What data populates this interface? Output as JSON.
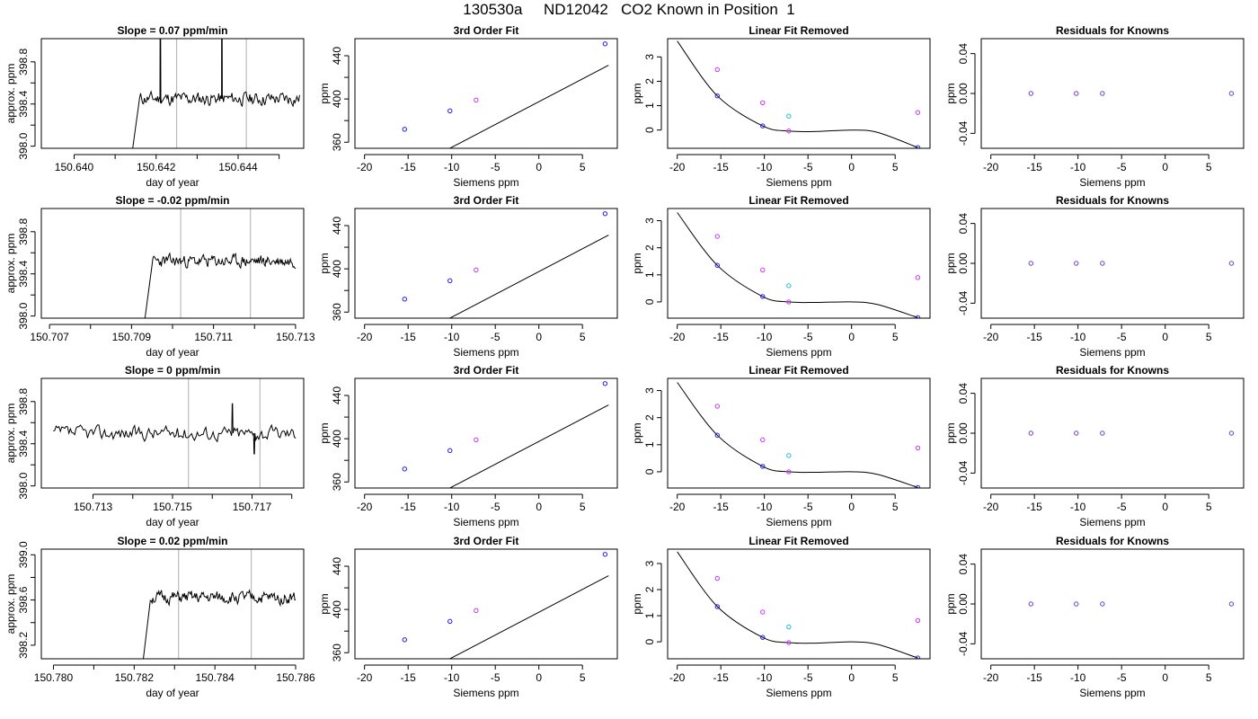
{
  "title": "130530a     ND12042   CO2 Known in Position  1",
  "colors": {
    "trace": "#000000",
    "vline": "#bbbbbb",
    "magenta": "#cc33ff",
    "cyan": "#22bbdd",
    "blue": "#1a1aee",
    "purple": "#6a3dcc"
  },
  "chart_data": [
    {
      "id": "r1-trace",
      "type": "line",
      "title": "Slope =  0.07  ppm/min",
      "xlabel": "day of year",
      "ylabel": "approx. ppm",
      "xlim": [
        150.6392,
        150.6456
      ],
      "ylim": [
        397.98,
        399.02
      ],
      "xticks": [
        150.64,
        150.641,
        150.642,
        150.643,
        150.644,
        150.645
      ],
      "xtick_labels": [
        "150.640",
        "",
        "150.642",
        "",
        "150.644",
        ""
      ],
      "yticks": [
        398.0,
        398.2,
        398.4,
        398.6,
        398.8
      ],
      "ytick_labels": [
        "398.0",
        "",
        "398.4",
        "",
        "398.8"
      ],
      "vlines": [
        150.6425,
        150.6442
      ],
      "x_start": 150.6414,
      "x_end": 150.6455,
      "baseline": 398.45,
      "noise": 0.07,
      "seed": 11,
      "spikes": [
        [
          150.6421,
          399.5
        ],
        [
          150.6436,
          399.5
        ]
      ],
      "rise": {
        "from": 397.9,
        "x0": 150.6414,
        "x1": 150.6416
      }
    },
    {
      "id": "r1-fit",
      "type": "line",
      "title": "3rd Order Fit",
      "xlabel": "Siemens ppm",
      "ylabel": "ppm",
      "xlim": [
        -21.1,
        9.0
      ],
      "ylim": [
        354.4,
        455.8
      ],
      "xticks": [
        -20,
        -15,
        -10,
        -5,
        0,
        5
      ],
      "yticks": [
        360,
        380,
        400,
        420,
        440
      ],
      "ytick_labels": [
        "360",
        "",
        "400",
        "",
        "440"
      ],
      "line": {
        "slope": 4.22,
        "intercept": 397.5,
        "x0": -20,
        "x1": 8
      },
      "points": [
        {
          "x": -15.4,
          "y": 372,
          "color": "blue"
        },
        {
          "x": -10.2,
          "y": 389,
          "color": "blue"
        },
        {
          "x": -7.2,
          "y": 399,
          "color": "magenta"
        },
        {
          "x": 7.6,
          "y": 451,
          "color": "blue"
        }
      ]
    },
    {
      "id": "r1-resid",
      "type": "scatter",
      "title": "Linear Fit Removed",
      "xlabel": "Siemens ppm",
      "ylabel": "ppm",
      "xlim": [
        -21.1,
        9.0
      ],
      "ylim": [
        -0.75,
        3.75
      ],
      "xticks": [
        -20,
        -15,
        -10,
        -5,
        0,
        5
      ],
      "yticks": [
        0,
        1,
        2,
        3
      ],
      "curve": [
        [
          -20,
          3.65
        ],
        [
          -15.4,
          1.4
        ],
        [
          -10.2,
          0.17
        ],
        [
          -7.2,
          -0.04
        ],
        [
          -4,
          -0.06
        ],
        [
          0,
          0.0
        ],
        [
          3,
          -0.1
        ],
        [
          7.6,
          -0.72
        ]
      ],
      "points": [
        {
          "x": -15.4,
          "y": 2.48,
          "color": "magenta"
        },
        {
          "x": -15.4,
          "y": 1.4,
          "color": "blue"
        },
        {
          "x": -10.2,
          "y": 1.12,
          "color": "magenta"
        },
        {
          "x": -10.2,
          "y": 0.17,
          "color": "blue"
        },
        {
          "x": -7.2,
          "y": 0.57,
          "color": "cyan"
        },
        {
          "x": -7.2,
          "y": -0.04,
          "color": "magenta"
        },
        {
          "x": 7.6,
          "y": 0.72,
          "color": "magenta"
        },
        {
          "x": 7.6,
          "y": -0.72,
          "color": "blue"
        }
      ]
    },
    {
      "id": "r1-known",
      "type": "scatter",
      "title": "Residuals for Knowns",
      "xlabel": "Siemens ppm",
      "ylabel": "ppm",
      "xlim": [
        -21.1,
        9.0
      ],
      "ylim": [
        -0.055,
        0.055
      ],
      "xticks": [
        -20,
        -15,
        -10,
        -5,
        0,
        5
      ],
      "yticks": [
        -0.04,
        0.0,
        0.04
      ],
      "ytick_labels": [
        "-0.04",
        "0.00",
        "0.04"
      ],
      "points": [
        {
          "x": -15.4,
          "y": 0,
          "color": "purple"
        },
        {
          "x": -10.2,
          "y": 0,
          "color": "purple"
        },
        {
          "x": -7.2,
          "y": 0,
          "color": "purple"
        },
        {
          "x": 7.6,
          "y": 0,
          "color": "purple"
        }
      ]
    },
    {
      "id": "r2-trace",
      "type": "line",
      "title": "Slope =  -0.02  ppm/min",
      "xlabel": "day of year",
      "ylabel": "approx. ppm",
      "xlim": [
        150.7068,
        150.7132
      ],
      "ylim": [
        397.98,
        399.02
      ],
      "xticks": [
        150.707,
        150.708,
        150.709,
        150.71,
        150.711,
        150.712,
        150.713
      ],
      "xtick_labels": [
        "150.707",
        "",
        "150.709",
        "",
        "150.711",
        "",
        "150.713"
      ],
      "yticks": [
        398.0,
        398.2,
        398.4,
        398.6,
        398.8
      ],
      "ytick_labels": [
        "398.0",
        "",
        "398.4",
        "",
        "398.8"
      ],
      "vlines": [
        150.7102,
        150.7119
      ],
      "x_start": 150.7093,
      "x_end": 150.713,
      "baseline": 398.52,
      "noise": 0.065,
      "seed": 23,
      "spikes": [],
      "rise": {
        "from": 397.9,
        "x0": 150.7093,
        "x1": 150.7095
      }
    },
    {
      "id": "r2-fit",
      "type": "line",
      "title": "3rd Order Fit",
      "xlabel": "Siemens ppm",
      "ylabel": "ppm",
      "xlim": [
        -21.1,
        9.0
      ],
      "ylim": [
        354.4,
        455.8
      ],
      "xticks": [
        -20,
        -15,
        -10,
        -5,
        0,
        5
      ],
      "yticks": [
        360,
        380,
        400,
        420,
        440
      ],
      "ytick_labels": [
        "360",
        "",
        "400",
        "",
        "440"
      ],
      "line": {
        "slope": 4.22,
        "intercept": 397.5,
        "x0": -20,
        "x1": 8
      },
      "points": [
        {
          "x": -15.4,
          "y": 372,
          "color": "blue"
        },
        {
          "x": -10.2,
          "y": 389,
          "color": "blue"
        },
        {
          "x": -7.2,
          "y": 399,
          "color": "magenta"
        },
        {
          "x": 7.6,
          "y": 451,
          "color": "blue"
        }
      ]
    },
    {
      "id": "r2-resid",
      "type": "scatter",
      "title": "Linear Fit Removed",
      "xlabel": "Siemens ppm",
      "ylabel": "ppm",
      "xlim": [
        -21.1,
        9.0
      ],
      "ylim": [
        -0.6,
        3.45
      ],
      "xticks": [
        -20,
        -15,
        -10,
        -5,
        0,
        5
      ],
      "yticks": [
        0,
        1,
        2,
        3
      ],
      "curve": [
        [
          -20,
          3.3
        ],
        [
          -15.4,
          1.35
        ],
        [
          -10.2,
          0.2
        ],
        [
          -7.2,
          0.0
        ],
        [
          -4,
          -0.02
        ],
        [
          0,
          0.0
        ],
        [
          3,
          -0.1
        ],
        [
          7.6,
          -0.58
        ]
      ],
      "points": [
        {
          "x": -15.4,
          "y": 2.42,
          "color": "magenta"
        },
        {
          "x": -15.4,
          "y": 1.35,
          "color": "blue"
        },
        {
          "x": -10.2,
          "y": 1.18,
          "color": "magenta"
        },
        {
          "x": -10.2,
          "y": 0.2,
          "color": "blue"
        },
        {
          "x": -7.2,
          "y": 0.6,
          "color": "cyan"
        },
        {
          "x": -7.2,
          "y": 0.0,
          "color": "magenta"
        },
        {
          "x": 7.6,
          "y": 0.9,
          "color": "magenta"
        },
        {
          "x": 7.6,
          "y": -0.58,
          "color": "blue"
        }
      ]
    },
    {
      "id": "r2-known",
      "type": "scatter",
      "title": "Residuals for Knowns",
      "xlabel": "Siemens ppm",
      "ylabel": "ppm",
      "xlim": [
        -21.1,
        9.0
      ],
      "ylim": [
        -0.055,
        0.055
      ],
      "xticks": [
        -20,
        -15,
        -10,
        -5,
        0,
        5
      ],
      "yticks": [
        -0.04,
        0.0,
        0.04
      ],
      "ytick_labels": [
        "-0.04",
        "0.00",
        "0.04"
      ],
      "points": [
        {
          "x": -15.4,
          "y": 0,
          "color": "purple"
        },
        {
          "x": -10.2,
          "y": 0,
          "color": "purple"
        },
        {
          "x": -7.2,
          "y": 0,
          "color": "purple"
        },
        {
          "x": 7.6,
          "y": 0,
          "color": "purple"
        }
      ]
    },
    {
      "id": "r3-trace",
      "type": "line",
      "title": "Slope =  0  ppm/min",
      "xlabel": "day of year",
      "ylabel": "approx. ppm",
      "xlim": [
        150.7117,
        150.7183
      ],
      "ylim": [
        397.98,
        399.02
      ],
      "xticks": [
        150.713,
        150.714,
        150.715,
        150.716,
        150.717,
        150.718
      ],
      "xtick_labels": [
        "150.713",
        "",
        "150.715",
        "",
        "150.717",
        ""
      ],
      "yticks": [
        398.0,
        398.2,
        398.4,
        398.6,
        398.8
      ],
      "ytick_labels": [
        "398.0",
        "",
        "398.4",
        "",
        "398.8"
      ],
      "vlines": [
        150.7154,
        150.7172
      ],
      "x_start": 150.712,
      "x_end": 150.7181,
      "baseline": 398.5,
      "noise": 0.075,
      "seed": 37,
      "spikes": [
        [
          150.7165,
          398.78
        ],
        [
          150.71705,
          398.3
        ]
      ],
      "rise": null
    },
    {
      "id": "r3-fit",
      "type": "line",
      "title": "3rd Order Fit",
      "xlabel": "Siemens ppm",
      "ylabel": "ppm",
      "xlim": [
        -21.1,
        9.0
      ],
      "ylim": [
        354.4,
        455.8
      ],
      "xticks": [
        -20,
        -15,
        -10,
        -5,
        0,
        5
      ],
      "yticks": [
        360,
        380,
        400,
        420,
        440
      ],
      "ytick_labels": [
        "360",
        "",
        "400",
        "",
        "440"
      ],
      "line": {
        "slope": 4.22,
        "intercept": 397.5,
        "x0": -20,
        "x1": 8
      },
      "points": [
        {
          "x": -15.4,
          "y": 372,
          "color": "blue"
        },
        {
          "x": -10.2,
          "y": 389,
          "color": "blue"
        },
        {
          "x": -7.2,
          "y": 399,
          "color": "magenta"
        },
        {
          "x": 7.6,
          "y": 451,
          "color": "blue"
        }
      ]
    },
    {
      "id": "r3-resid",
      "type": "scatter",
      "title": "Linear Fit Removed",
      "xlabel": "Siemens ppm",
      "ylabel": "ppm",
      "xlim": [
        -21.1,
        9.0
      ],
      "ylim": [
        -0.6,
        3.45
      ],
      "xticks": [
        -20,
        -15,
        -10,
        -5,
        0,
        5
      ],
      "yticks": [
        0,
        1,
        2,
        3
      ],
      "curve": [
        [
          -20,
          3.3
        ],
        [
          -15.4,
          1.35
        ],
        [
          -10.2,
          0.2
        ],
        [
          -7.2,
          0.0
        ],
        [
          -4,
          -0.02
        ],
        [
          0,
          0.0
        ],
        [
          3,
          -0.1
        ],
        [
          7.6,
          -0.58
        ]
      ],
      "points": [
        {
          "x": -15.4,
          "y": 2.42,
          "color": "magenta"
        },
        {
          "x": -15.4,
          "y": 1.35,
          "color": "blue"
        },
        {
          "x": -10.2,
          "y": 1.18,
          "color": "magenta"
        },
        {
          "x": -10.2,
          "y": 0.2,
          "color": "blue"
        },
        {
          "x": -7.2,
          "y": 0.6,
          "color": "cyan"
        },
        {
          "x": -7.2,
          "y": 0.0,
          "color": "magenta"
        },
        {
          "x": 7.6,
          "y": 0.88,
          "color": "magenta"
        },
        {
          "x": 7.6,
          "y": -0.58,
          "color": "blue"
        }
      ]
    },
    {
      "id": "r3-known",
      "type": "scatter",
      "title": "Residuals for Knowns",
      "xlabel": "Siemens ppm",
      "ylabel": "ppm",
      "xlim": [
        -21.1,
        9.0
      ],
      "ylim": [
        -0.055,
        0.055
      ],
      "xticks": [
        -20,
        -15,
        -10,
        -5,
        0,
        5
      ],
      "yticks": [
        -0.04,
        0.0,
        0.04
      ],
      "ytick_labels": [
        "-0.04",
        "0.00",
        "0.04"
      ],
      "points": [
        {
          "x": -15.4,
          "y": 0,
          "color": "purple"
        },
        {
          "x": -10.2,
          "y": 0,
          "color": "purple"
        },
        {
          "x": -7.2,
          "y": 0,
          "color": "purple"
        },
        {
          "x": 7.6,
          "y": 0,
          "color": "purple"
        }
      ]
    },
    {
      "id": "r4-trace",
      "type": "line",
      "title": "Slope =  0.02  ppm/min",
      "xlabel": "day of year",
      "ylabel": "approx. ppm",
      "xlim": [
        150.7797,
        150.7862
      ],
      "ylim": [
        398.08,
        399.05
      ],
      "xticks": [
        150.78,
        150.781,
        150.782,
        150.783,
        150.784,
        150.785,
        150.786
      ],
      "xtick_labels": [
        "150.780",
        "",
        "150.782",
        "",
        "150.784",
        "",
        "150.786"
      ],
      "yticks": [
        398.2,
        398.4,
        398.6,
        398.8,
        399.0
      ],
      "ytick_labels": [
        "398.2",
        "",
        "398.6",
        "",
        "399.0"
      ],
      "vlines": [
        150.7831,
        150.7849
      ],
      "x_start": 150.7822,
      "x_end": 150.786,
      "baseline": 398.62,
      "noise": 0.06,
      "seed": 51,
      "spikes": [],
      "rise": {
        "from": 398.0,
        "x0": 150.7822,
        "x1": 150.7824
      }
    },
    {
      "id": "r4-fit",
      "type": "line",
      "title": "3rd Order Fit",
      "xlabel": "Siemens ppm",
      "ylabel": "ppm",
      "xlim": [
        -21.1,
        9.0
      ],
      "ylim": [
        354.4,
        455.8
      ],
      "xticks": [
        -20,
        -15,
        -10,
        -5,
        0,
        5
      ],
      "yticks": [
        360,
        380,
        400,
        420,
        440
      ],
      "ytick_labels": [
        "360",
        "",
        "400",
        "",
        "440"
      ],
      "line": {
        "slope": 4.22,
        "intercept": 397.5,
        "x0": -20,
        "x1": 8
      },
      "points": [
        {
          "x": -15.4,
          "y": 372,
          "color": "blue"
        },
        {
          "x": -10.2,
          "y": 389,
          "color": "blue"
        },
        {
          "x": -7.2,
          "y": 399,
          "color": "magenta"
        },
        {
          "x": 7.6,
          "y": 451,
          "color": "blue"
        }
      ]
    },
    {
      "id": "r4-resid",
      "type": "scatter",
      "title": "Linear Fit Removed",
      "xlabel": "Siemens ppm",
      "ylabel": "ppm",
      "xlim": [
        -21.1,
        9.0
      ],
      "ylim": [
        -0.65,
        3.55
      ],
      "xticks": [
        -20,
        -15,
        -10,
        -5,
        0,
        5
      ],
      "yticks": [
        0,
        1,
        2,
        3
      ],
      "curve": [
        [
          -20,
          3.45
        ],
        [
          -15.4,
          1.35
        ],
        [
          -10.2,
          0.17
        ],
        [
          -7.2,
          -0.03
        ],
        [
          -4,
          -0.05
        ],
        [
          0,
          0.0
        ],
        [
          3,
          -0.1
        ],
        [
          7.6,
          -0.62
        ]
      ],
      "points": [
        {
          "x": -15.4,
          "y": 2.43,
          "color": "magenta"
        },
        {
          "x": -15.4,
          "y": 1.35,
          "color": "blue"
        },
        {
          "x": -10.2,
          "y": 1.14,
          "color": "magenta"
        },
        {
          "x": -10.2,
          "y": 0.17,
          "color": "blue"
        },
        {
          "x": -7.2,
          "y": 0.57,
          "color": "cyan"
        },
        {
          "x": -7.2,
          "y": -0.03,
          "color": "magenta"
        },
        {
          "x": 7.6,
          "y": 0.82,
          "color": "magenta"
        },
        {
          "x": 7.6,
          "y": -0.62,
          "color": "blue"
        }
      ]
    },
    {
      "id": "r4-known",
      "type": "scatter",
      "title": "Residuals for Knowns",
      "xlabel": "Siemens ppm",
      "ylabel": "ppm",
      "xlim": [
        -21.1,
        9.0
      ],
      "ylim": [
        -0.055,
        0.055
      ],
      "xticks": [
        -20,
        -15,
        -10,
        -5,
        0,
        5
      ],
      "yticks": [
        -0.04,
        0.0,
        0.04
      ],
      "ytick_labels": [
        "-0.04",
        "0.00",
        "0.04"
      ],
      "points": [
        {
          "x": -15.4,
          "y": 0,
          "color": "purple"
        },
        {
          "x": -10.2,
          "y": 0,
          "color": "purple"
        },
        {
          "x": -7.2,
          "y": 0,
          "color": "purple"
        },
        {
          "x": 7.6,
          "y": 0,
          "color": "purple"
        }
      ]
    }
  ]
}
